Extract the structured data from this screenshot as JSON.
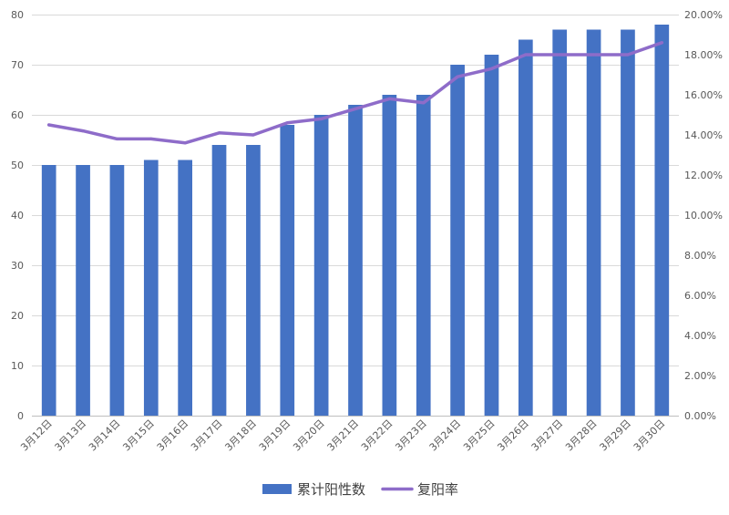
{
  "chart_data": {
    "type": "bar",
    "categories": [
      "3月12日",
      "3月13日",
      "3月14日",
      "3月15日",
      "3月16日",
      "3月17日",
      "3月18日",
      "3月19日",
      "3月20日",
      "3月21日",
      "3月22日",
      "3月23日",
      "3月24日",
      "3月25日",
      "3月26日",
      "3月27日",
      "3月28日",
      "3月29日",
      "3月30日"
    ],
    "series": [
      {
        "name": "累计阳性数",
        "type": "bar",
        "axis": "left",
        "color": "#4472C4",
        "values": [
          50,
          50,
          50,
          51,
          51,
          54,
          54,
          58,
          60,
          62,
          64,
          64,
          70,
          72,
          75,
          77,
          77,
          77,
          78
        ]
      },
      {
        "name": "复阳率",
        "type": "line",
        "axis": "right",
        "color": "#8E6CC9",
        "values": [
          14.5,
          14.2,
          13.8,
          13.8,
          13.6,
          14.1,
          14.0,
          14.6,
          14.8,
          15.3,
          15.8,
          15.6,
          16.9,
          17.3,
          18.0,
          18.0,
          18.0,
          18.0,
          18.6
        ]
      }
    ],
    "y_left": {
      "min": 0,
      "max": 80,
      "step": 10,
      "ticks": [
        "0",
        "10",
        "20",
        "30",
        "40",
        "50",
        "60",
        "70",
        "80"
      ]
    },
    "y_right": {
      "min": 0,
      "max": 20,
      "step": 2,
      "unit": "%",
      "ticks": [
        "0.00%",
        "2.00%",
        "4.00%",
        "6.00%",
        "8.00%",
        "10.00%",
        "12.00%",
        "14.00%",
        "16.00%",
        "18.00%",
        "20.00%"
      ]
    },
    "grid": true,
    "legend_position": "bottom"
  }
}
